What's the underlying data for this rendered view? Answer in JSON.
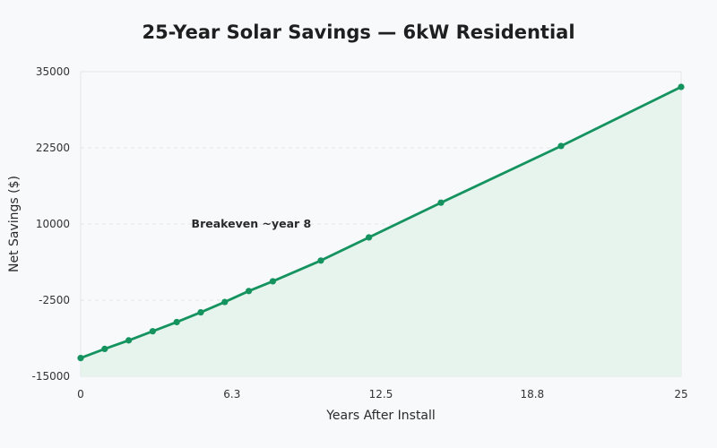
{
  "chart_data": {
    "type": "line",
    "title": "25-Year Solar Savings — 6kW Residential",
    "xlabel": "Years After Install",
    "ylabel": "Net Savings ($)",
    "xlim": [
      0,
      25
    ],
    "ylim": [
      -15000,
      35000
    ],
    "x_ticks": [
      0,
      6.3,
      12.5,
      18.8,
      25
    ],
    "x_tick_labels": [
      "0",
      "6.3",
      "12.5",
      "18.8",
      "25"
    ],
    "y_ticks": [
      -15000,
      -2500,
      10000,
      22500,
      35000
    ],
    "y_tick_labels": [
      "-15000",
      "-2500",
      "10000",
      "22500",
      "35000"
    ],
    "grid": true,
    "fill_under": true,
    "series": [
      {
        "x": [
          0,
          1,
          2,
          3,
          4,
          5,
          6,
          7,
          8,
          10,
          12,
          15,
          20,
          25
        ],
        "y": [
          -12000,
          -10500,
          -9100,
          -7600,
          -6100,
          -4500,
          -2800,
          -1000,
          600,
          4000,
          7800,
          13500,
          22800,
          32500
        ]
      }
    ],
    "annotations": [
      {
        "text": "Breakeven ~year 8",
        "x": 8,
        "y": 600
      }
    ],
    "colors": {
      "line": "#14935f",
      "fill": "#e4f2ea",
      "grid": "#e1e6ea",
      "plot_background": "#f7f9fb"
    }
  }
}
